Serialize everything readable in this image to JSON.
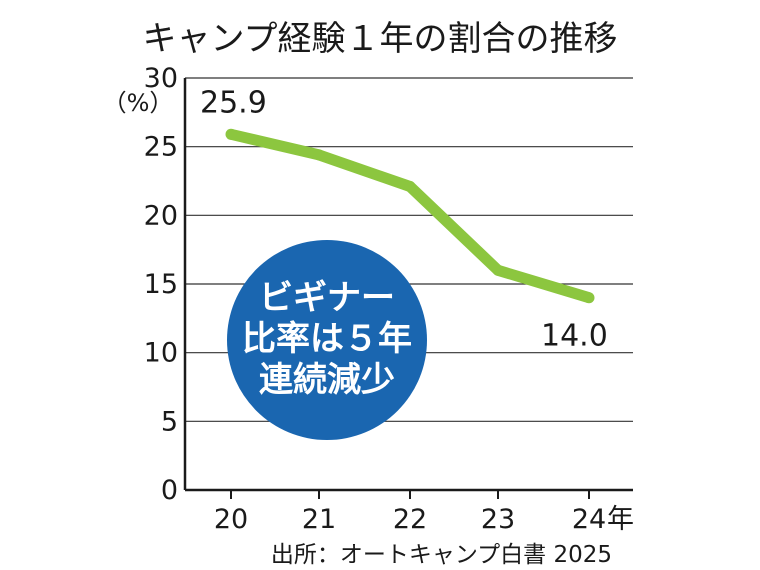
{
  "chart_data": {
    "type": "line",
    "title": "キャンプ経験１年の割合の推移",
    "ylabel": "（%）",
    "xlabel": "",
    "x_unit": "年",
    "categories": [
      "20",
      "21",
      "22",
      "23",
      "24"
    ],
    "series": [
      {
        "values": [
          25.9,
          24.4,
          22.1,
          16.0,
          14.0
        ]
      }
    ],
    "ylim": [
      0,
      30
    ],
    "yticks": [
      0,
      5,
      10,
      15,
      20,
      25,
      30
    ],
    "grid": true,
    "data_labels": [
      {
        "index": 0,
        "text": "25.9"
      },
      {
        "index": 4,
        "text": "14.0"
      }
    ],
    "annotation": {
      "lines": [
        "ビギナー",
        "比率は５年",
        "連続減少"
      ]
    },
    "source": "出所：オートキャンプ白書 2025"
  },
  "colors": {
    "line": "#8cc63f",
    "badge": "#1a66b0",
    "grid": "#333333"
  }
}
